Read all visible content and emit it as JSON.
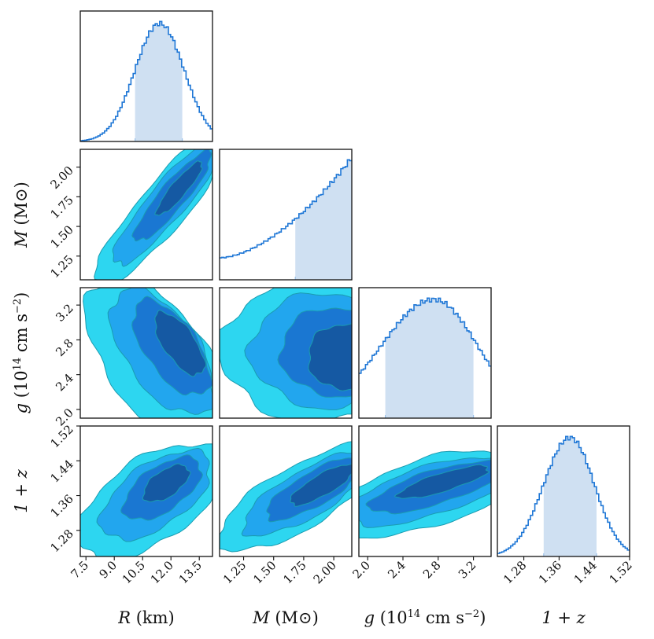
{
  "chart_data": {
    "type": "corner",
    "parameters": [
      {
        "id": "R",
        "label_main": "R",
        "label_unit": " (km)",
        "range": [
          7.2,
          14.2
        ],
        "ticks": [
          7.5,
          9.0,
          10.5,
          12.0,
          13.5
        ],
        "tick_labels": [
          "7.5",
          "9.0",
          "10.5",
          "12.0",
          "13.5"
        ]
      },
      {
        "id": "M",
        "label_main": "M",
        "label_unit": " (M⊙)",
        "range": [
          1.05,
          2.15
        ],
        "ticks": [
          1.25,
          1.5,
          1.75,
          2.0
        ],
        "tick_labels": [
          "1.25",
          "1.50",
          "1.75",
          "2.00"
        ]
      },
      {
        "id": "g",
        "label_main": "g",
        "label_unit": " (10",
        "label_exp": "14",
        "label_unit2": " cm s",
        "label_exp2": "−2",
        "label_close": ")",
        "range": [
          1.9,
          3.4
        ],
        "ticks": [
          2.0,
          2.4,
          2.8,
          3.2
        ],
        "tick_labels": [
          "2.0",
          "2.4",
          "2.8",
          "3.2"
        ]
      },
      {
        "id": "z",
        "label_main": "1 + z",
        "label_unit": "",
        "range": [
          1.22,
          1.52
        ],
        "ticks": [
          1.28,
          1.36,
          1.44,
          1.52
        ],
        "tick_labels": [
          "1.28",
          "1.36",
          "1.44",
          "1.52"
        ]
      }
    ],
    "marginals": {
      "R": {
        "dist": "peak",
        "mode": 11.4,
        "sigma_low": 1.3,
        "sigma_high": 1.3,
        "interval": [
          10.1,
          12.6
        ]
      },
      "M": {
        "dist": "rising",
        "lower": 1.05,
        "upper": 2.15,
        "interval": [
          1.68,
          2.15
        ]
      },
      "g": {
        "dist": "peak",
        "mode": 2.75,
        "sigma_low": 0.6,
        "sigma_high": 0.5,
        "interval": [
          2.2,
          3.2
        ]
      },
      "z": {
        "dist": "peak",
        "mode": 1.385,
        "sigma_low": 0.06,
        "sigma_high": 0.055,
        "interval": [
          1.325,
          1.445
        ]
      }
    },
    "contour_levels": [
      "outer",
      "middle",
      "inner",
      "core"
    ],
    "contour_colors": [
      "#2dd6f0",
      "#22a6ee",
      "#1a77d2",
      "#1559a3"
    ],
    "contour_edge": "#1a9cb0",
    "histogram_color": "#1f77d6",
    "band_color": "#cfe0f2"
  }
}
